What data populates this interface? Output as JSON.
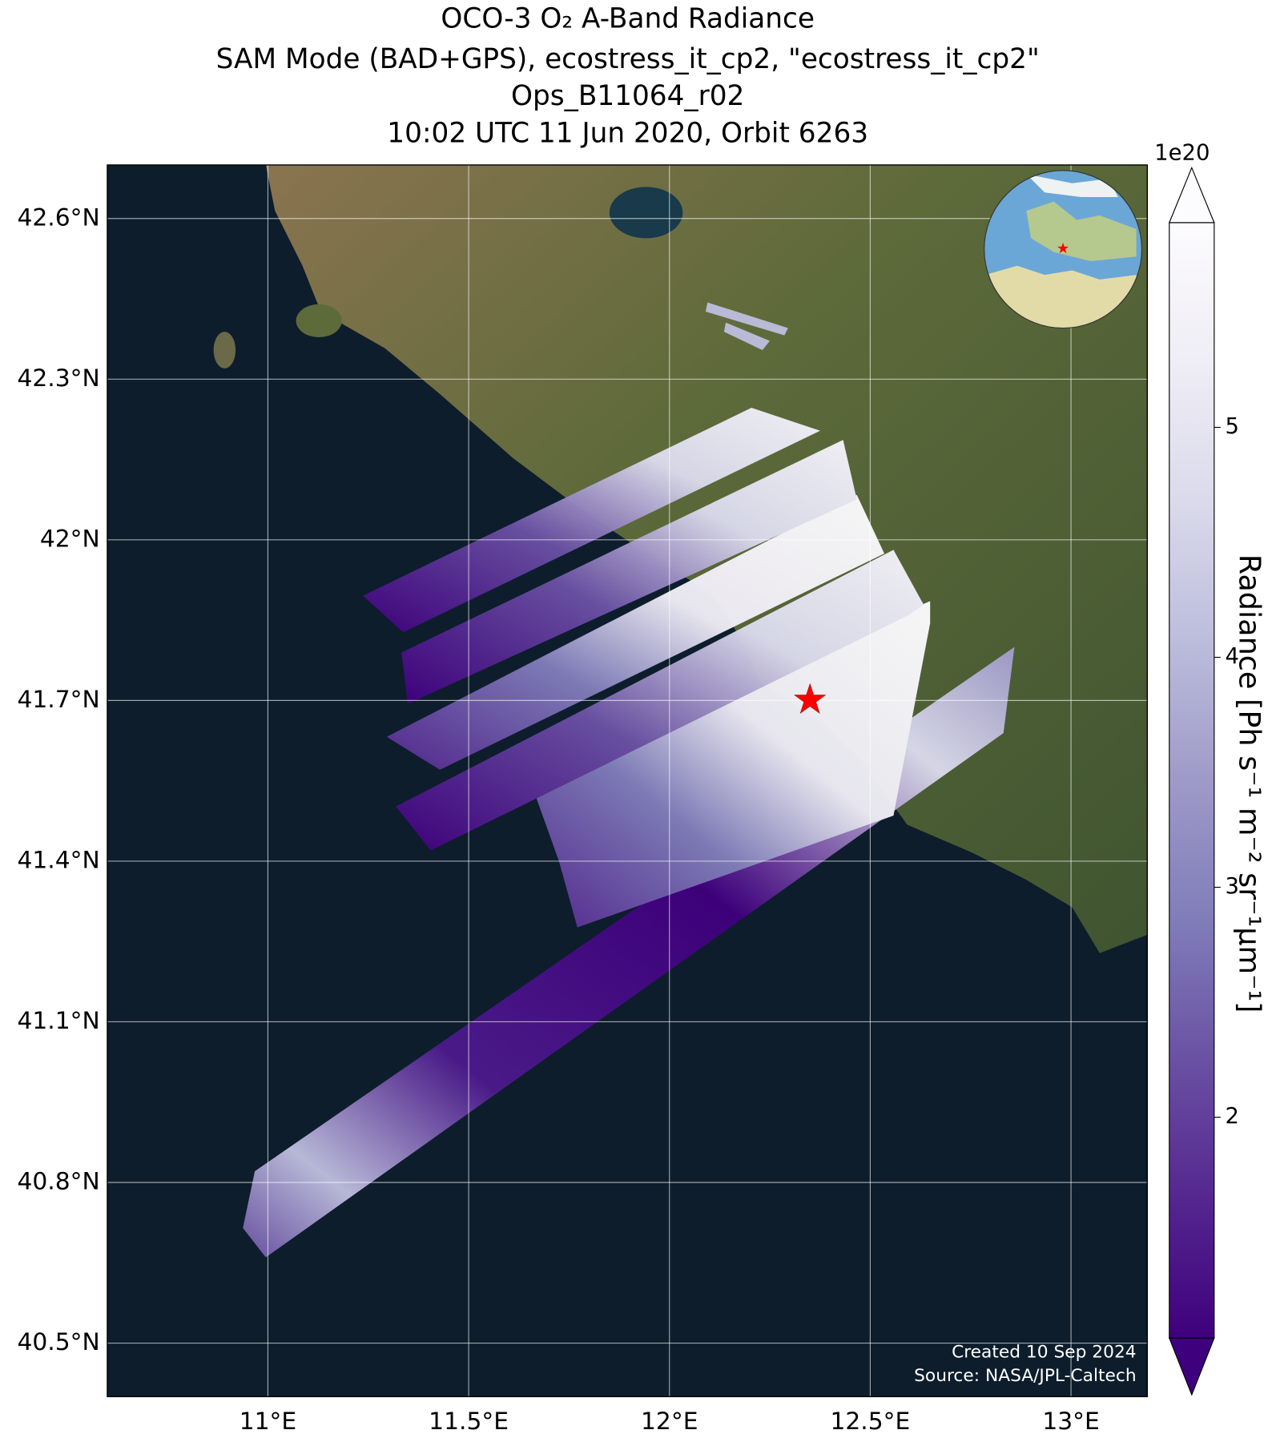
{
  "chart_data": {
    "type": "map",
    "title": [
      "OCO-3 O₂ A-Band Radiance",
      "SAM Mode (BAD+GPS), ecostress_it_cp2, \"ecostress_it_cp2\"",
      "Ops_B11064_r02",
      "10:02 UTC 11 Jun 2020, Orbit 6263"
    ],
    "xlim": [
      10.6,
      13.19
    ],
    "ylim": [
      40.4,
      42.7
    ],
    "xticks": [
      {
        "value": 11,
        "label": "11°E"
      },
      {
        "value": 11.5,
        "label": "11.5°E"
      },
      {
        "value": 12,
        "label": "12°E"
      },
      {
        "value": 12.5,
        "label": "12.5°E"
      },
      {
        "value": 13,
        "label": "13°E"
      }
    ],
    "yticks": [
      {
        "value": 40.5,
        "label": "40.5°N"
      },
      {
        "value": 40.8,
        "label": "40.8°N"
      },
      {
        "value": 41.1,
        "label": "41.1°N"
      },
      {
        "value": 41.4,
        "label": "41.4°N"
      },
      {
        "value": 41.7,
        "label": "41.7°N"
      },
      {
        "value": 42,
        "label": "42°N"
      },
      {
        "value": 42.3,
        "label": "42.3°N"
      },
      {
        "value": 42.6,
        "label": "42.6°N"
      }
    ],
    "grid": true,
    "target": {
      "lon": 12.35,
      "lat": 41.7,
      "color": "#ff0000"
    },
    "colorbar": {
      "label": "Radiance [Ph s⁻¹ m⁻² sr⁻¹μm⁻¹]",
      "exponent": "1e20",
      "lim": [
        1.04,
        5.89
      ],
      "ticks": [
        2,
        3,
        4,
        5
      ],
      "colormap": [
        "#3f007d",
        "#54278f",
        "#6a51a3",
        "#807dba",
        "#9e9ac8",
        "#bcbddc",
        "#dadaeb",
        "#efedf5",
        "#fcfbfd"
      ]
    },
    "credits": [
      "Created 10 Sep 2024",
      "Source: NASA/JPL-Caltech"
    ]
  }
}
